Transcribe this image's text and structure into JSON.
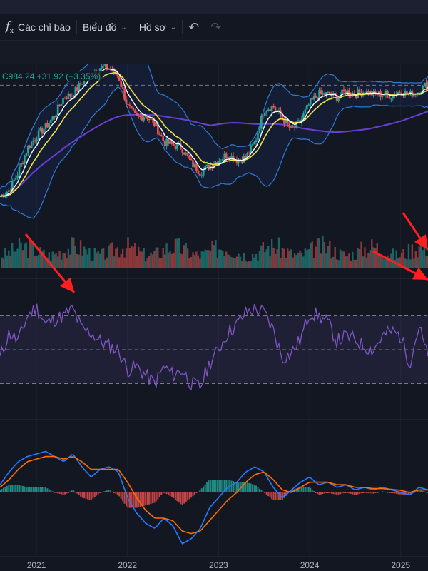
{
  "toolbar": {
    "indicators_label": "Các chỉ báo",
    "chart_label": "Biểu đồ",
    "profile_label": "Hồ sơ"
  },
  "legend": {
    "price_text": "C984.24 +31.92 (+3.35%)"
  },
  "colors": {
    "background": "#131722",
    "up": "#26a69a",
    "down": "#ef5350",
    "bollinger": "#2f7bd8",
    "ma_white": "#ffffff",
    "ma_yellow": "#f0e442",
    "ma_purple": "#6a3fd8",
    "rsi": "#7e57c2",
    "macd": "#2979ff",
    "signal": "#ff6d00",
    "arrow": "#ff1f1f"
  },
  "chart_data": {
    "type": "line",
    "x_ticks": [
      "2021",
      "2022",
      "2023",
      "2024",
      "2025"
    ],
    "x_tick_positions": [
      2021.0,
      2022.0,
      2023.0,
      2024.0,
      2025.0
    ],
    "x_range": [
      2020.6,
      2025.3
    ],
    "price_panel": {
      "ylim": [
        760,
        1010
      ],
      "last_close": 984.24,
      "change": 31.92,
      "change_pct": 3.35,
      "dashed_level": 975,
      "close": [
        [
          2020.6,
          790
        ],
        [
          2020.7,
          800
        ],
        [
          2020.8,
          830
        ],
        [
          2020.9,
          870
        ],
        [
          2021.0,
          890
        ],
        [
          2021.1,
          905
        ],
        [
          2021.2,
          925
        ],
        [
          2021.3,
          955
        ],
        [
          2021.4,
          960
        ],
        [
          2021.5,
          980
        ],
        [
          2021.6,
          995
        ],
        [
          2021.7,
          1005
        ],
        [
          2021.8,
          1003
        ],
        [
          2021.9,
          990
        ],
        [
          2022.0,
          940
        ],
        [
          2022.1,
          920
        ],
        [
          2022.2,
          925
        ],
        [
          2022.3,
          910
        ],
        [
          2022.4,
          880
        ],
        [
          2022.5,
          875
        ],
        [
          2022.6,
          870
        ],
        [
          2022.7,
          845
        ],
        [
          2022.8,
          830
        ],
        [
          2022.9,
          840
        ],
        [
          2023.0,
          850
        ],
        [
          2023.1,
          860
        ],
        [
          2023.2,
          850
        ],
        [
          2023.3,
          855
        ],
        [
          2023.4,
          880
        ],
        [
          2023.5,
          935
        ],
        [
          2023.6,
          940
        ],
        [
          2023.7,
          920
        ],
        [
          2023.8,
          900
        ],
        [
          2023.9,
          915
        ],
        [
          2024.0,
          945
        ],
        [
          2024.1,
          960
        ],
        [
          2024.2,
          960
        ],
        [
          2024.3,
          955
        ],
        [
          2024.4,
          965
        ],
        [
          2024.5,
          960
        ],
        [
          2024.6,
          965
        ],
        [
          2024.7,
          960
        ],
        [
          2024.8,
          960
        ],
        [
          2024.9,
          958
        ],
        [
          2025.0,
          965
        ],
        [
          2025.1,
          960
        ],
        [
          2025.2,
          965
        ],
        [
          2025.3,
          980
        ]
      ],
      "volume_panel": {
        "ylim": [
          0,
          100
        ]
      }
    },
    "rsi_panel": {
      "ylim": [
        10,
        90
      ],
      "levels": [
        70,
        50,
        30
      ],
      "rsi": [
        [
          2020.6,
          45
        ],
        [
          2020.7,
          60
        ],
        [
          2020.8,
          55
        ],
        [
          2020.9,
          70
        ],
        [
          2021.0,
          75
        ],
        [
          2021.1,
          65
        ],
        [
          2021.2,
          68
        ],
        [
          2021.3,
          70
        ],
        [
          2021.4,
          74
        ],
        [
          2021.5,
          62
        ],
        [
          2021.6,
          60
        ],
        [
          2021.7,
          55
        ],
        [
          2021.8,
          52
        ],
        [
          2021.9,
          50
        ],
        [
          2022.0,
          38
        ],
        [
          2022.1,
          40
        ],
        [
          2022.2,
          35
        ],
        [
          2022.3,
          30
        ],
        [
          2022.4,
          40
        ],
        [
          2022.5,
          35
        ],
        [
          2022.6,
          38
        ],
        [
          2022.7,
          30
        ],
        [
          2022.8,
          28
        ],
        [
          2022.9,
          42
        ],
        [
          2023.0,
          50
        ],
        [
          2023.1,
          60
        ],
        [
          2023.2,
          65
        ],
        [
          2023.3,
          72
        ],
        [
          2023.4,
          74
        ],
        [
          2023.5,
          72
        ],
        [
          2023.6,
          62
        ],
        [
          2023.7,
          45
        ],
        [
          2023.8,
          48
        ],
        [
          2023.9,
          56
        ],
        [
          2024.0,
          72
        ],
        [
          2024.1,
          70
        ],
        [
          2024.2,
          66
        ],
        [
          2024.3,
          55
        ],
        [
          2024.4,
          58
        ],
        [
          2024.5,
          56
        ],
        [
          2024.6,
          52
        ],
        [
          2024.7,
          50
        ],
        [
          2024.8,
          58
        ],
        [
          2024.9,
          61
        ],
        [
          2025.0,
          58
        ],
        [
          2025.1,
          42
        ],
        [
          2025.2,
          64
        ],
        [
          2025.3,
          45
        ]
      ]
    },
    "macd_panel": {
      "ylim": [
        -25,
        25
      ],
      "macd": [
        [
          2020.6,
          3
        ],
        [
          2020.7,
          8
        ],
        [
          2020.8,
          12
        ],
        [
          2020.9,
          14
        ],
        [
          2021.0,
          15
        ],
        [
          2021.1,
          16
        ],
        [
          2021.2,
          14
        ],
        [
          2021.3,
          12
        ],
        [
          2021.4,
          15
        ],
        [
          2021.5,
          10
        ],
        [
          2021.6,
          6
        ],
        [
          2021.7,
          9
        ],
        [
          2021.8,
          10
        ],
        [
          2021.9,
          8
        ],
        [
          2022.0,
          -2
        ],
        [
          2022.1,
          -8
        ],
        [
          2022.2,
          -12
        ],
        [
          2022.3,
          -14
        ],
        [
          2022.4,
          -10
        ],
        [
          2022.5,
          -13
        ],
        [
          2022.6,
          -20
        ],
        [
          2022.7,
          -18
        ],
        [
          2022.8,
          -14
        ],
        [
          2022.9,
          -6
        ],
        [
          2023.0,
          -2
        ],
        [
          2023.1,
          2
        ],
        [
          2023.2,
          4
        ],
        [
          2023.3,
          8
        ],
        [
          2023.4,
          10
        ],
        [
          2023.5,
          8
        ],
        [
          2023.6,
          2
        ],
        [
          2023.7,
          -2
        ],
        [
          2023.8,
          1
        ],
        [
          2023.9,
          4
        ],
        [
          2024.0,
          6
        ],
        [
          2024.1,
          3
        ],
        [
          2024.2,
          4
        ],
        [
          2024.3,
          2
        ],
        [
          2024.4,
          3
        ],
        [
          2024.5,
          1
        ],
        [
          2024.6,
          2
        ],
        [
          2024.7,
          1
        ],
        [
          2024.8,
          2
        ],
        [
          2024.9,
          1
        ],
        [
          2025.0,
          0
        ],
        [
          2025.1,
          -1
        ],
        [
          2025.2,
          2
        ],
        [
          2025.3,
          1
        ]
      ],
      "signal": [
        [
          2020.6,
          2
        ],
        [
          2020.7,
          5
        ],
        [
          2020.8,
          9
        ],
        [
          2020.9,
          12
        ],
        [
          2021.0,
          13
        ],
        [
          2021.1,
          14
        ],
        [
          2021.2,
          14
        ],
        [
          2021.3,
          13
        ],
        [
          2021.4,
          14
        ],
        [
          2021.5,
          12
        ],
        [
          2021.6,
          9
        ],
        [
          2021.7,
          9
        ],
        [
          2021.8,
          9
        ],
        [
          2021.9,
          9
        ],
        [
          2022.0,
          4
        ],
        [
          2022.1,
          -2
        ],
        [
          2022.2,
          -7
        ],
        [
          2022.3,
          -10
        ],
        [
          2022.4,
          -10
        ],
        [
          2022.5,
          -11
        ],
        [
          2022.6,
          -15
        ],
        [
          2022.7,
          -16
        ],
        [
          2022.8,
          -15
        ],
        [
          2022.9,
          -11
        ],
        [
          2023.0,
          -7
        ],
        [
          2023.1,
          -3
        ],
        [
          2023.2,
          0
        ],
        [
          2023.3,
          4
        ],
        [
          2023.4,
          7
        ],
        [
          2023.5,
          8
        ],
        [
          2023.6,
          5
        ],
        [
          2023.7,
          1
        ],
        [
          2023.8,
          0
        ],
        [
          2023.9,
          2
        ],
        [
          2024.0,
          4
        ],
        [
          2024.1,
          4
        ],
        [
          2024.2,
          4
        ],
        [
          2024.3,
          3
        ],
        [
          2024.4,
          3
        ],
        [
          2024.5,
          2
        ],
        [
          2024.6,
          2
        ],
        [
          2024.7,
          1.5
        ],
        [
          2024.8,
          1.5
        ],
        [
          2024.9,
          1.2
        ],
        [
          2025.0,
          0.8
        ],
        [
          2025.1,
          0
        ],
        [
          2025.2,
          1
        ],
        [
          2025.3,
          1
        ]
      ]
    }
  }
}
